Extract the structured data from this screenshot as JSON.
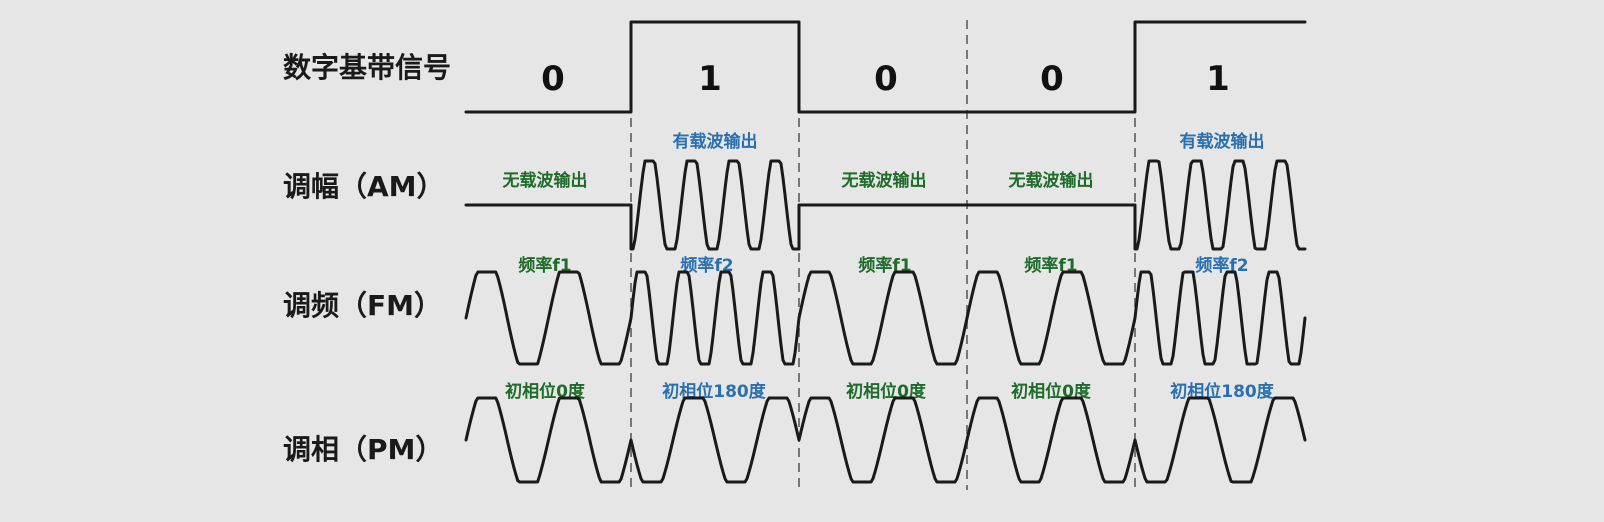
{
  "labels": {
    "digital": "数字基带信号",
    "am": "调幅（AM）",
    "fm": "调频（FM）",
    "pm": "调相（PM）"
  },
  "bits": [
    "0",
    "1",
    "0",
    "0",
    "1"
  ],
  "am_annotations": [
    "无载波输出",
    "有载波输出",
    "无载波输出",
    "无载波输出",
    "有载波输出"
  ],
  "fm_annotations": [
    "频率f1",
    "频率f2",
    "频率f1",
    "频率f1",
    "频率f2"
  ],
  "pm_annotations": [
    "初相位0度",
    "初相位180度",
    "初相位0度",
    "初相位0度",
    "初相位180度"
  ],
  "colors": {
    "zero_annotation": "#1e6b2a",
    "one_annotation": "#2a6fb0",
    "signal": "#1a1a1a",
    "divider": "#777777",
    "background": "#e6e6e6"
  }
}
